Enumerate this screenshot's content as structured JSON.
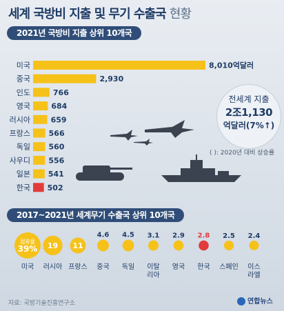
{
  "header": {
    "title": "세계 국방비 지출 및 무기 수출국",
    "title_suffix": "현황"
  },
  "chart_data": [
    {
      "type": "bar",
      "title": "2021년 국방비 지출 상위 10개국",
      "categories": [
        "미국",
        "중국",
        "인도",
        "영국",
        "러시아",
        "프랑스",
        "독일",
        "사우디",
        "일본",
        "한국"
      ],
      "values": [
        8010,
        2930,
        766,
        684,
        659,
        566,
        560,
        556,
        541,
        502
      ],
      "value_labels": [
        "8,010억달러",
        "2,930",
        "766",
        "684",
        "659",
        "566",
        "560",
        "556",
        "541",
        "502"
      ],
      "highlight_category": "한국",
      "colors": {
        "bar": "#f6c21a",
        "highlight": "#e23b3b"
      }
    },
    {
      "type": "scatter",
      "title": "2017~2021년 세계무기 수출국 상위 10개국",
      "categories": [
        "미국",
        "러시아",
        "프랑스",
        "중국",
        "독일",
        "이탈리아",
        "영국",
        "한국",
        "스페인",
        "이스라엘"
      ],
      "category_labels": [
        [
          "미국"
        ],
        [
          "러시아"
        ],
        [
          "프랑스"
        ],
        [
          "중국"
        ],
        [
          "독일"
        ],
        [
          "이탈",
          "리아"
        ],
        [
          "영국"
        ],
        [
          "한국"
        ],
        [
          "스페인"
        ],
        [
          "이스",
          "라엘"
        ]
      ],
      "values": [
        39,
        19,
        11,
        4.6,
        4.5,
        3.1,
        2.9,
        2.8,
        2.5,
        2.4
      ],
      "value_labels": [
        "39%",
        "19",
        "11",
        "4.6",
        "4.5",
        "3.1",
        "2.9",
        "2.8",
        "2.5",
        "2.4"
      ],
      "first_value_prefix": "점유율",
      "highlight_category": "한국",
      "colors": {
        "dot": "#f6c21a",
        "highlight": "#e23b3b"
      }
    }
  ],
  "total": {
    "line1": "전세계 지출",
    "line2": "2조1,130",
    "line3": "억달러(7%↑)"
  },
  "note": "( ): 2020년 대비 상승률",
  "source": "자료: 국방기술진흥연구소",
  "logo": "연합뉴스"
}
